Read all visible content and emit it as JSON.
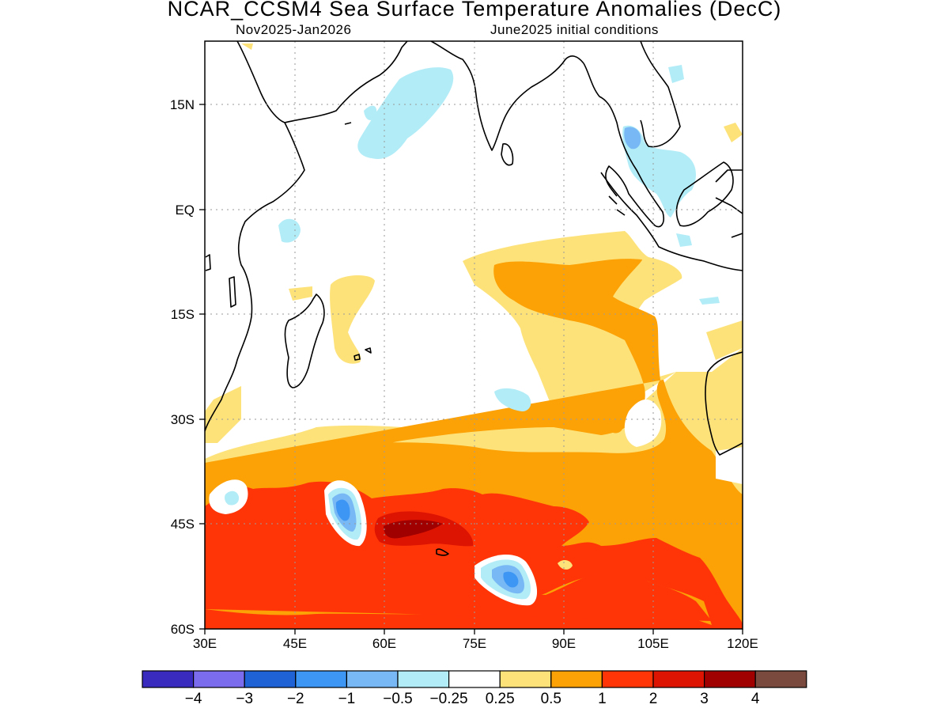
{
  "title": "NCAR_CCSM4 Sea Surface Temperature Anomalies (DecC)",
  "subtitle_left": "Nov2025-Jan2026",
  "subtitle_right": "June2025 initial conditions",
  "map": {
    "region": "Indian Ocean",
    "lon_range": [
      30,
      120
    ],
    "lat_range": [
      -60,
      24
    ],
    "x_ticks": [
      "30E",
      "45E",
      "60E",
      "75E",
      "90E",
      "105E",
      "120E"
    ],
    "y_ticks": [
      "15N",
      "EQ",
      "15S",
      "30S",
      "45S",
      "60S"
    ],
    "grid": "dotted"
  },
  "colorbar": {
    "colors": [
      "#3a2bbf",
      "#7b6cee",
      "#1f62d6",
      "#3d96f3",
      "#78b8f5",
      "#b2ecf7",
      "#ffffff",
      "#fde27a",
      "#fca106",
      "#ff3508",
      "#de1402",
      "#a00000",
      "#794a3d"
    ],
    "labels": [
      "-4",
      "-3",
      "-2",
      "-1",
      "-0.5",
      "-0.25",
      "0.25",
      "0.5",
      "1",
      "2",
      "3",
      "4"
    ]
  },
  "legend_colors": {
    "c_neg025": "#b2ecf7",
    "c_neg05": "#78b8f5",
    "c_neg1": "#3d96f3",
    "c_pos025": "#fde27a",
    "c_pos05": "#fca106",
    "c_pos1": "#ff3508",
    "c_pos2": "#de1402",
    "c_pos3": "#a00000"
  }
}
